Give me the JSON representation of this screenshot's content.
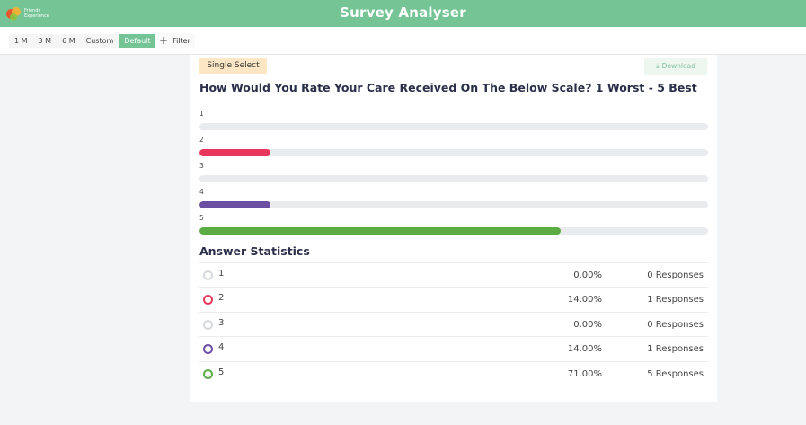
{
  "header": {
    "logo_text_1": "Friends",
    "logo_text_2": "Experience",
    "title": "Survey Analyser"
  },
  "toolbar": {
    "ranges": [
      "1 M",
      "3 M",
      "6 M",
      "Custom",
      "Default"
    ],
    "active_range": "Default",
    "filter_label": "Filter"
  },
  "card": {
    "badge": "Single Select",
    "download_label": "Download",
    "question": "How Would You Rate Your Care Received On The Below Scale? 1 Worst - 5 Best"
  },
  "chart_data": {
    "type": "bar",
    "orientation": "horizontal",
    "categories": [
      "1",
      "2",
      "3",
      "4",
      "5"
    ],
    "values": [
      0.0,
      14.0,
      0.0,
      14.0,
      71.0
    ],
    "unit": "%",
    "xlim": [
      0,
      100
    ],
    "colors": [
      "#d6d9dd",
      "#e8365d",
      "#d6d9dd",
      "#6a4fa3",
      "#5cab45"
    ]
  },
  "stats": {
    "title": "Answer Statistics",
    "rows": [
      {
        "label": "1",
        "percent": "0.00%",
        "responses": "0 Responses",
        "color": "#d6d9dd"
      },
      {
        "label": "2",
        "percent": "14.00%",
        "responses": "1 Responses",
        "color": "#e8365d"
      },
      {
        "label": "3",
        "percent": "0.00%",
        "responses": "0 Responses",
        "color": "#d6d9dd"
      },
      {
        "label": "4",
        "percent": "14.00%",
        "responses": "1 Responses",
        "color": "#6a4fa3"
      },
      {
        "label": "5",
        "percent": "71.00%",
        "responses": "5 Responses",
        "color": "#5cab45"
      }
    ]
  }
}
